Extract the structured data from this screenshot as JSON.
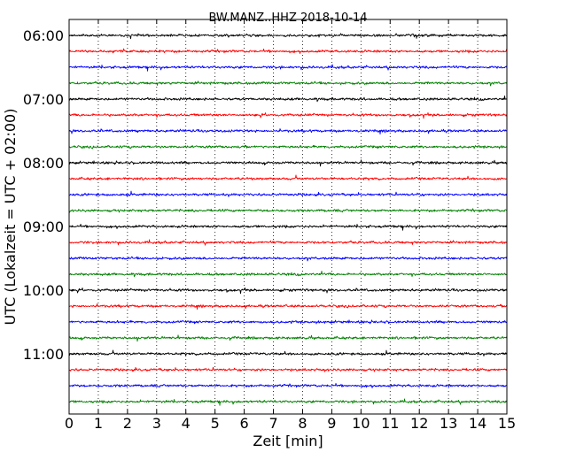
{
  "chart_data": {
    "type": "line",
    "title": "BW.MANZ..HHZ 2018-10-14",
    "xlabel": "Zeit  [min]",
    "ylabel": "UTC (Lokalzeit = UTC + 02:00)",
    "xlim": [
      0,
      15
    ],
    "x_ticks": [
      "0",
      "1",
      "2",
      "3",
      "4",
      "5",
      "6",
      "7",
      "8",
      "9",
      "10",
      "11",
      "12",
      "13",
      "14",
      "15"
    ],
    "y_ticks": [
      "06:00",
      "07:00",
      "08:00",
      "09:00",
      "10:00",
      "11:00"
    ],
    "grid": "vertical dotted",
    "trace_interval_minutes": 15,
    "colors": [
      "#000000",
      "#ff0000",
      "#0000ff",
      "#008000"
    ],
    "series": [
      {
        "start": "06:00",
        "color": "#000000"
      },
      {
        "start": "06:15",
        "color": "#ff0000"
      },
      {
        "start": "06:30",
        "color": "#0000ff"
      },
      {
        "start": "06:45",
        "color": "#008000"
      },
      {
        "start": "07:00",
        "color": "#000000"
      },
      {
        "start": "07:15",
        "color": "#ff0000"
      },
      {
        "start": "07:30",
        "color": "#0000ff"
      },
      {
        "start": "07:45",
        "color": "#008000"
      },
      {
        "start": "08:00",
        "color": "#000000"
      },
      {
        "start": "08:15",
        "color": "#ff0000"
      },
      {
        "start": "08:30",
        "color": "#0000ff"
      },
      {
        "start": "08:45",
        "color": "#008000"
      },
      {
        "start": "09:00",
        "color": "#000000"
      },
      {
        "start": "09:15",
        "color": "#ff0000"
      },
      {
        "start": "09:30",
        "color": "#0000ff"
      },
      {
        "start": "09:45",
        "color": "#008000"
      },
      {
        "start": "10:00",
        "color": "#000000"
      },
      {
        "start": "10:15",
        "color": "#ff0000"
      },
      {
        "start": "10:30",
        "color": "#0000ff"
      },
      {
        "start": "10:45",
        "color": "#008000"
      },
      {
        "start": "11:00",
        "color": "#000000"
      },
      {
        "start": "11:15",
        "color": "#ff0000"
      },
      {
        "start": "11:30",
        "color": "#0000ff"
      },
      {
        "start": "11:45",
        "color": "#008000"
      }
    ]
  }
}
